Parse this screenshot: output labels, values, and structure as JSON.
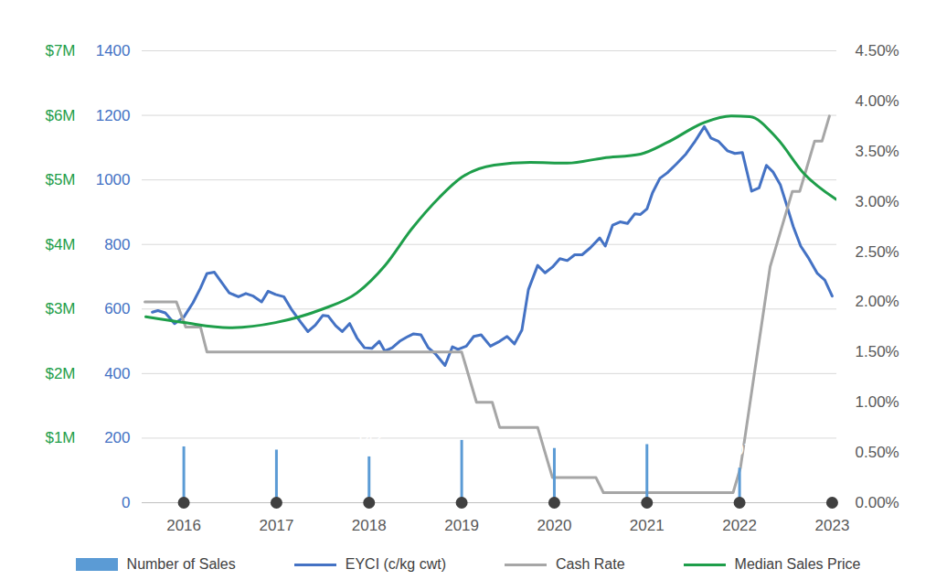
{
  "chart_data": {
    "type": "combo",
    "xlim": [
      2015.55,
      2023.05
    ],
    "xticks": [
      2016,
      2017,
      2018,
      2019,
      2020,
      2021,
      2022,
      2023
    ],
    "ylim": [
      0,
      1400
    ],
    "yticks": [
      0,
      200,
      400,
      600,
      800,
      1000,
      1200,
      1400
    ],
    "y2lim": [
      0,
      4.5
    ],
    "y2ticks": [
      {
        "value": 0,
        "label": "0.00%"
      },
      {
        "value": 0.5,
        "label": "0.50%"
      },
      {
        "value": 1,
        "label": "1.00%"
      },
      {
        "value": 1.5,
        "label": "1.50%"
      },
      {
        "value": 2,
        "label": "2.00%"
      },
      {
        "value": 2.5,
        "label": "2.50%"
      },
      {
        "value": 3,
        "label": "3.00%"
      },
      {
        "value": 3.5,
        "label": "3.50%"
      },
      {
        "value": 4,
        "label": "4.00%"
      },
      {
        "value": 4.5,
        "label": "4.50%"
      }
    ],
    "y3lim": [
      0,
      7
    ],
    "y3ticks": [
      {
        "value": 1,
        "label": "$1M"
      },
      {
        "value": 2,
        "label": "$2M"
      },
      {
        "value": 3,
        "label": "$3M"
      },
      {
        "value": 4,
        "label": "$4M"
      },
      {
        "value": 5,
        "label": "$5M"
      },
      {
        "value": 6,
        "label": "$6M"
      },
      {
        "value": 7,
        "label": "$7M"
      }
    ],
    "grid": true,
    "legend": "bottom",
    "series": [
      {
        "name": "Number of Sales",
        "type": "lollipop",
        "color": "#5B9BD5",
        "axis": "y",
        "data_labels": true,
        "x": [
          2016,
          2017,
          2018,
          2019,
          2020,
          2021,
          2022,
          2023
        ],
        "values": [
          173,
          163,
          142,
          193,
          168,
          180,
          107,
          9
        ]
      },
      {
        "name": "EYCI (c/kg cwt)",
        "type": "line",
        "color": "#4472C4",
        "axis": "y",
        "x": [
          2015.66,
          2015.72,
          2015.8,
          2015.9,
          2016.0,
          2016.1,
          2016.18,
          2016.25,
          2016.33,
          2016.39,
          2016.49,
          2016.59,
          2016.67,
          2016.75,
          2016.84,
          2016.91,
          2016.99,
          2017.08,
          2017.16,
          2017.26,
          2017.34,
          2017.42,
          2017.5,
          2017.56,
          2017.64,
          2017.71,
          2017.79,
          2017.87,
          2017.95,
          2018.03,
          2018.11,
          2018.17,
          2018.25,
          2018.33,
          2018.42,
          2018.48,
          2018.56,
          2018.64,
          2018.72,
          2018.82,
          2018.9,
          2018.96,
          2019.05,
          2019.13,
          2019.21,
          2019.31,
          2019.41,
          2019.49,
          2019.57,
          2019.65,
          2019.72,
          2019.82,
          2019.9,
          2019.98,
          2020.06,
          2020.14,
          2020.22,
          2020.3,
          2020.39,
          2020.49,
          2020.55,
          2020.63,
          2020.71,
          2020.79,
          2020.87,
          2020.93,
          2021.0,
          2021.06,
          2021.14,
          2021.22,
          2021.32,
          2021.42,
          2021.52,
          2021.62,
          2021.69,
          2021.77,
          2021.87,
          2021.95,
          2022.03,
          2022.13,
          2022.21,
          2022.29,
          2022.36,
          2022.44,
          2022.5,
          2022.58,
          2022.66,
          2022.74,
          2022.84,
          2022.92,
          2023.0
        ],
        "values": [
          590,
          595,
          588,
          555,
          575,
          620,
          665,
          710,
          714,
          690,
          650,
          638,
          648,
          640,
          622,
          655,
          645,
          638,
          600,
          560,
          530,
          550,
          580,
          578,
          548,
          530,
          555,
          510,
          480,
          478,
          500,
          470,
          480,
          500,
          515,
          523,
          520,
          480,
          460,
          425,
          483,
          475,
          485,
          515,
          520,
          485,
          500,
          515,
          492,
          535,
          660,
          735,
          712,
          730,
          756,
          750,
          768,
          768,
          790,
          820,
          795,
          860,
          870,
          865,
          895,
          893,
          910,
          960,
          1005,
          1022,
          1050,
          1080,
          1120,
          1165,
          1130,
          1120,
          1090,
          1082,
          1085,
          965,
          975,
          1045,
          1025,
          985,
          930,
          855,
          795,
          760,
          710,
          690,
          640
        ]
      },
      {
        "name": "Cash Rate",
        "type": "line",
        "color": "#A6A6A6",
        "axis": "y2",
        "x": [
          2015.58,
          2015.92,
          2016.02,
          2016.18,
          2016.25,
          2019.0,
          2019.08,
          2019.16,
          2019.33,
          2019.41,
          2019.82,
          2019.9,
          2019.98,
          2020.45,
          2020.53,
          2021.93,
          2022.01,
          2022.09,
          2022.17,
          2022.25,
          2022.33,
          2022.41,
          2022.49,
          2022.57,
          2022.65,
          2022.73,
          2022.81,
          2022.89,
          2022.97
        ],
        "values": [
          2.0,
          2.0,
          1.75,
          1.75,
          1.5,
          1.5,
          1.25,
          1.0,
          1.0,
          0.75,
          0.75,
          0.5,
          0.25,
          0.25,
          0.1,
          0.1,
          0.35,
          0.85,
          1.35,
          1.85,
          2.35,
          2.6,
          2.85,
          3.1,
          3.1,
          3.35,
          3.6,
          3.6,
          3.85
        ]
      },
      {
        "name": "Median Sales Price",
        "type": "line",
        "color": "#1E9E4A",
        "axis": "y3",
        "line_style": "smooth",
        "x": [
          2015.59,
          2016.0,
          2016.49,
          2016.99,
          2017.48,
          2017.87,
          2018.17,
          2018.46,
          2018.76,
          2019.0,
          2019.35,
          2019.74,
          2020.14,
          2020.53,
          2020.93,
          2021.22,
          2021.62,
          2021.91,
          2022.11,
          2022.4,
          2022.7,
          2023.04
        ],
        "values": [
          2.88,
          2.79,
          2.71,
          2.79,
          2.99,
          3.25,
          3.67,
          4.24,
          4.73,
          5.04,
          5.23,
          5.27,
          5.26,
          5.34,
          5.4,
          5.58,
          5.89,
          5.99,
          5.98,
          5.65,
          5.09,
          4.7
        ]
      }
    ]
  }
}
